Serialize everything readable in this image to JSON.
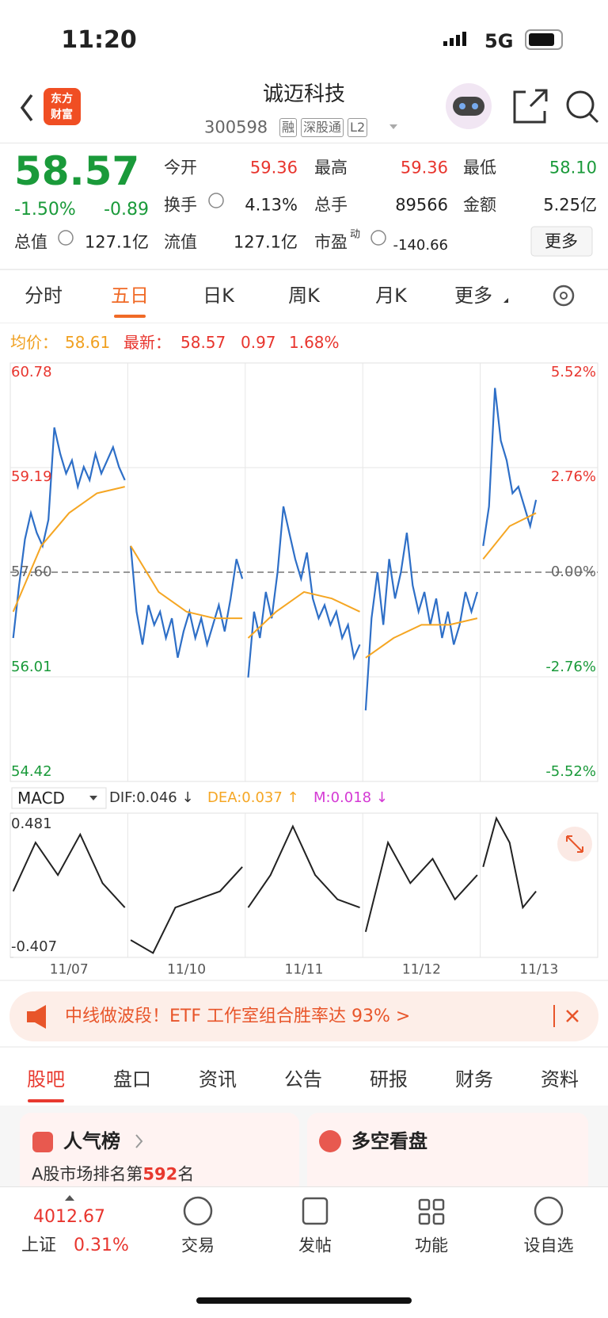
{
  "status": {
    "time": "11:20",
    "network": "5G"
  },
  "header": {
    "logo": [
      "东方",
      "财富"
    ],
    "title": "诚迈科技",
    "code": "300598",
    "badges": [
      "融",
      "深股通",
      "L2"
    ]
  },
  "quote": {
    "price": "58.57",
    "change_pct": "-1.50%",
    "change": "-0.89",
    "stats": [
      [
        {
          "label": "今开",
          "value": "59.36"
        },
        {
          "label": "最高",
          "value": "59.36"
        },
        {
          "label": "最低",
          "value": "58.10"
        }
      ],
      [
        {
          "label": "换手",
          "value": "4.13%"
        },
        {
          "label": "总手",
          "value": "89566"
        },
        {
          "label": "金额",
          "value": "5.25亿"
        }
      ],
      [
        {
          "label": "总值",
          "value": "127.1亿"
        },
        {
          "label": "流值",
          "value": "127.1亿"
        },
        {
          "label": "市盈",
          "sup": "动",
          "value": "-140.66"
        }
      ]
    ],
    "more": "更多"
  },
  "tabs": {
    "items": [
      "分时",
      "五日",
      "日K",
      "周K",
      "月K",
      "更多"
    ],
    "active": 1
  },
  "info": {
    "avg_label": "均价：",
    "avg": "58.61",
    "last_label": "最新：",
    "last": "58.57",
    "change": "0.97",
    "change_pct": "1.68%"
  },
  "chart_data": {
    "type": "line",
    "categories": [
      "11/07",
      "11/10",
      "11/11",
      "11/12",
      "11/13"
    ],
    "ylim": [
      54.42,
      60.78
    ],
    "yticks": [
      60.78,
      59.19,
      {
        "value": 57.6,
        "label": "57.60"
      },
      56.01,
      54.42
    ],
    "y2lim": [
      -5.52,
      5.52
    ],
    "y2ticks": [
      {
        "value": 5.52,
        "label": "5.52%"
      },
      {
        "value": 2.76,
        "label": "2.76%"
      },
      {
        "value": 0,
        "label": "0.00%"
      },
      {
        "value": -2.76,
        "label": "-2.76%"
      },
      {
        "value": -5.52,
        "label": "-5.52%"
      }
    ],
    "series": [
      {
        "color": "#2e6fc7",
        "values": [
          [
            56.6,
            57.4,
            58.1,
            58.5,
            58.2,
            58.0,
            58.4,
            59.8,
            59.4,
            59.1,
            59.3,
            58.9,
            59.2,
            59.0,
            59.4,
            59.1,
            59.3,
            59.5,
            59.2,
            59.0
          ],
          [
            58.0,
            57.0,
            56.5,
            57.1,
            56.8,
            57.0,
            56.6,
            56.9,
            56.3,
            56.7,
            57.0,
            56.6,
            56.9,
            56.5,
            56.8,
            57.1,
            56.7,
            57.2,
            57.8,
            57.5
          ],
          [
            56.0,
            57.0,
            56.6,
            57.3,
            56.9,
            57.6,
            58.6,
            58.2,
            57.8,
            57.5,
            57.9,
            57.2,
            56.9,
            57.1,
            56.8,
            57.0,
            56.6,
            56.8,
            56.3,
            56.5
          ],
          [
            55.5,
            56.9,
            57.6,
            56.8,
            57.8,
            57.2,
            57.6,
            58.2,
            57.4,
            57.0,
            57.3,
            56.8,
            57.2,
            56.6,
            57.0,
            56.5,
            56.8,
            57.3,
            57.0,
            57.3
          ],
          [
            58.0,
            58.6,
            60.4,
            59.6,
            59.3,
            58.8,
            58.9,
            58.6,
            58.3,
            58.7
          ]
        ]
      },
      {
        "color": "#f5a623",
        "values": [
          [
            57.0,
            58.0,
            58.5,
            58.8,
            58.9
          ],
          [
            58.0,
            57.3,
            57.0,
            56.9,
            56.9
          ],
          [
            56.6,
            57.0,
            57.3,
            57.2,
            57.0
          ],
          [
            56.3,
            56.6,
            56.8,
            56.8,
            56.9
          ],
          [
            57.8,
            58.3,
            58.5
          ]
        ]
      }
    ]
  },
  "macd": {
    "title": "MACD",
    "legend": [
      {
        "text": "DIF:0.046 ↓",
        "color": "#333333"
      },
      {
        "text": "DEA:0.037 ↑",
        "color": "#f5a623"
      },
      {
        "text": "M:0.018 ↓",
        "color": "#d43ad4"
      }
    ],
    "ylim": [
      -0.407,
      0.481
    ],
    "yticks": [
      0.481,
      -0.407
    ],
    "color": "#222222",
    "dif": [
      [
        0.0,
        0.3,
        0.1,
        0.35,
        0.05,
        -0.1
      ],
      [
        -0.3,
        -0.38,
        -0.1,
        -0.05,
        0.0,
        0.15
      ],
      [
        -0.1,
        0.1,
        0.4,
        0.1,
        -0.05,
        -0.1
      ],
      [
        -0.25,
        0.3,
        0.05,
        0.2,
        -0.05,
        0.1
      ],
      [
        0.15,
        0.45,
        0.3,
        -0.1,
        0.0
      ]
    ]
  },
  "banner": {
    "text": "中线做波段！ETF 工作室组合胜率达 93% >"
  },
  "subtabs": {
    "items": [
      "股吧",
      "盘口",
      "资讯",
      "公告",
      "研报",
      "财务",
      "资料"
    ],
    "active": 0
  },
  "cards": {
    "rank_title": "人气榜",
    "rank_prefix": "A股市场排名第",
    "rank": "592",
    "rank_suffix": "名",
    "outlook": "多空看盘"
  },
  "bottom": {
    "index_value": "4012.67",
    "index_name": "上证",
    "index_change": "0.31%",
    "items": [
      "交易",
      "发帖",
      "功能",
      "设自选"
    ]
  }
}
